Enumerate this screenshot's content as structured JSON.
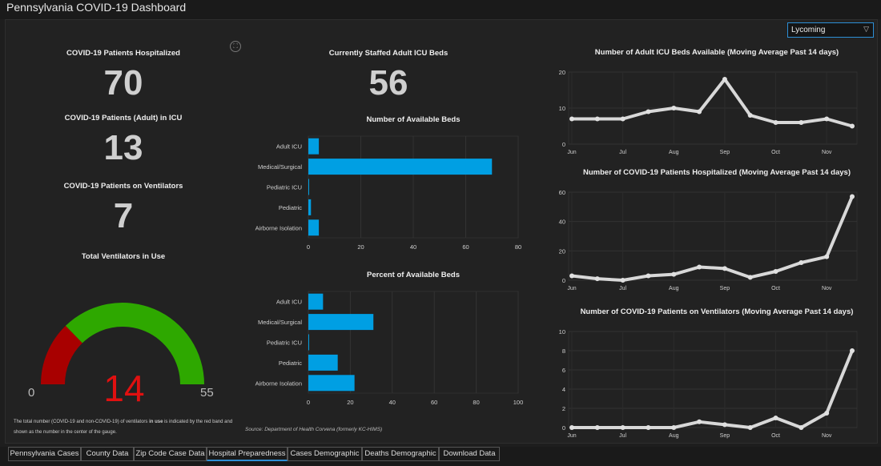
{
  "app": {
    "title": "Pennsylvania COVID-19 Dashboard"
  },
  "filter": {
    "selected": "Lycoming",
    "caret": "▽"
  },
  "stats": {
    "hospitalized": {
      "title": "COVID-19 Patients Hospitalized",
      "value": "70"
    },
    "icu": {
      "title": "COVID-19 Patients (Adult) in ICU",
      "value": "13"
    },
    "ventilators": {
      "title": "COVID-19 Patients on Ventilators",
      "value": "7"
    },
    "staffed_icu": {
      "title": "Currently Staffed Adult ICU Beds",
      "value": "56"
    }
  },
  "gauge": {
    "title": "Total Ventilators in Use",
    "min": "0",
    "max": "55",
    "value": "14",
    "value_number": 14,
    "band_max": 14,
    "scale_max": 55,
    "colors": {
      "used": "#a80000",
      "remaining": "#2ea800"
    },
    "note_prefix": "The total number (COVID-19 and non-COVID-19) of ventilators ",
    "note_bold": "in use",
    "note_suffix": " is indicated by the red band and shown as the number in the center of the gauge."
  },
  "source_note": "Source: Department of Health Corvena (formerly KC-HIMS)",
  "icons": {
    "expand": "expand-icon"
  },
  "accent_color": "#009fe3",
  "tabs": [
    {
      "label": "Pennsylvania Cases",
      "active": false
    },
    {
      "label": "County Data",
      "active": false
    },
    {
      "label": "Zip Code Case Data",
      "active": false
    },
    {
      "label": "Hospital Preparedness",
      "active": true
    },
    {
      "label": "Cases Demographic",
      "active": false
    },
    {
      "label": "Deaths Demographic",
      "active": false
    },
    {
      "label": "Download Data",
      "active": false
    }
  ],
  "chart_data": [
    {
      "type": "bar",
      "orientation": "horizontal",
      "title": "Number of Available Beds",
      "categories": [
        "Adult ICU",
        "Medical/Surgical",
        "Pediatric ICU",
        "Pediatric",
        "Airborne Isolation"
      ],
      "values": [
        4,
        70,
        0,
        1,
        4
      ],
      "xlim": [
        0,
        80
      ],
      "xticks": [
        "0",
        "20",
        "40",
        "60",
        "80"
      ]
    },
    {
      "type": "bar",
      "orientation": "horizontal",
      "title": "Percent of Available Beds",
      "categories": [
        "Adult ICU",
        "Medical/Surgical",
        "Pediatric ICU",
        "Pediatric",
        "Airborne Isolation"
      ],
      "values": [
        7,
        31,
        0,
        14,
        22
      ],
      "xlim": [
        0,
        100
      ],
      "xticks": [
        "0",
        "20",
        "40",
        "60",
        "80",
        "100"
      ]
    },
    {
      "type": "line",
      "title": "Number of Adult ICU Beds Available (Moving Average Past 14 days)",
      "x": [
        "Jun",
        "Jun 16",
        "Jul",
        "Jul 16",
        "Aug",
        "Aug 16",
        "Sep",
        "Sep 16",
        "Oct",
        "Oct 16",
        "Nov",
        "Nov 16"
      ],
      "values": [
        7,
        7,
        7,
        9,
        10,
        9,
        18,
        8,
        6,
        6,
        7,
        5
      ],
      "ylim": [
        0,
        20
      ],
      "yticks": [
        "0",
        "10",
        "20"
      ],
      "xticks": [
        "Jun",
        "Jul",
        "Aug",
        "Sep",
        "Oct",
        "Nov"
      ]
    },
    {
      "type": "line",
      "title": "Number of COVID-19 Patients Hospitalized (Moving Average Past 14 days)",
      "x": [
        "Jun",
        "Jun 16",
        "Jul",
        "Jul 16",
        "Aug",
        "Aug 16",
        "Sep",
        "Sep 16",
        "Oct",
        "Oct 16",
        "Nov",
        "Nov 16"
      ],
      "values": [
        3,
        1,
        0,
        3,
        4,
        9,
        8,
        2,
        6,
        12,
        16,
        57
      ],
      "ylim": [
        0,
        60
      ],
      "yticks": [
        "0",
        "20",
        "40",
        "60"
      ],
      "xticks": [
        "Jun",
        "Jul",
        "Aug",
        "Sep",
        "Oct",
        "Nov"
      ]
    },
    {
      "type": "line",
      "title": "Number of COVID-19 Patients on Ventilators (Moving Average Past 14 days)",
      "x": [
        "Jun",
        "Jun 16",
        "Jul",
        "Jul 16",
        "Aug",
        "Aug 16",
        "Sep",
        "Sep 16",
        "Oct",
        "Oct 16",
        "Nov",
        "Nov 16"
      ],
      "values": [
        0,
        0,
        0,
        0,
        0,
        0.6,
        0.3,
        0,
        1,
        0,
        1.5,
        8
      ],
      "ylim": [
        0,
        10
      ],
      "yticks": [
        "0",
        "2",
        "4",
        "6",
        "8",
        "10"
      ],
      "xticks": [
        "Jun",
        "Jul",
        "Aug",
        "Sep",
        "Oct",
        "Nov"
      ]
    }
  ]
}
